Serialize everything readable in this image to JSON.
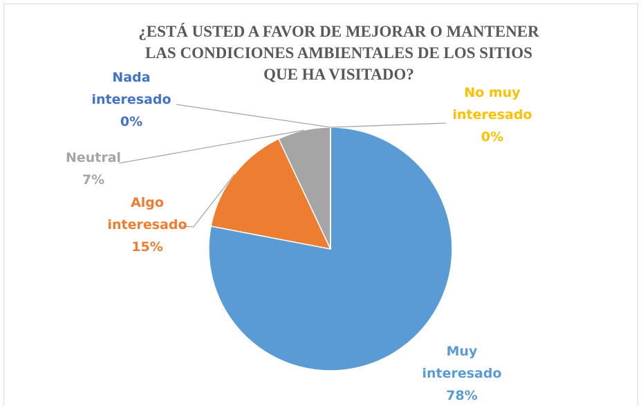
{
  "chart_data": {
    "type": "pie",
    "title": "¿ESTÁ USTED A FAVOR DE MEJORAR O MANTENER LAS CONDICIONES AMBIENTALES DE LOS SITIOS QUE HA VISITADO?",
    "categories": [
      "Muy interesado",
      "Algo interesado",
      "Neutral",
      "Nada interesado",
      "No muy interesado"
    ],
    "values": [
      78,
      15,
      7,
      0,
      0
    ],
    "value_labels": [
      "78%",
      "15%",
      "7%",
      "0%",
      "0%"
    ],
    "colors": [
      "#5b9bd5",
      "#ed7d31",
      "#a5a5a5",
      "#4472c4",
      "#ffc000"
    ]
  }
}
